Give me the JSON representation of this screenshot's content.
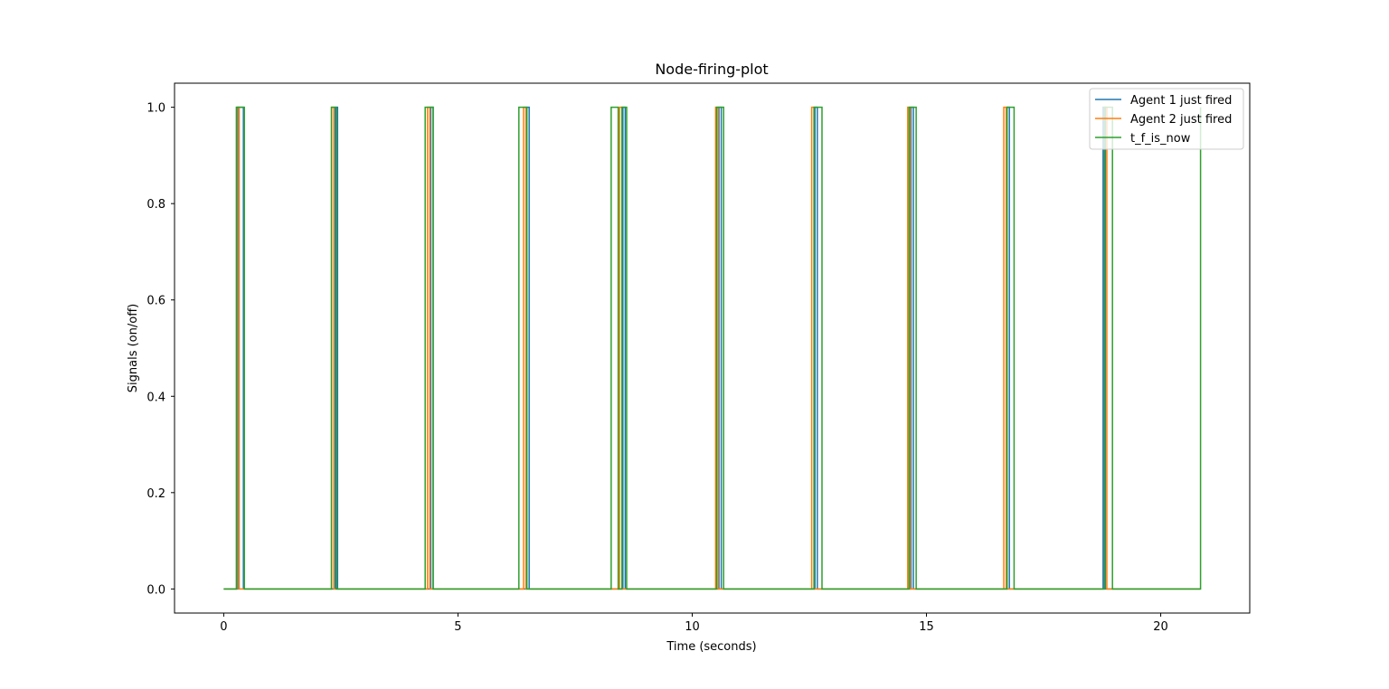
{
  "chart_data": {
    "type": "line",
    "title": "Node-firing-plot",
    "xlabel": "Time (seconds)",
    "ylabel": "Signals (on/off)",
    "xlim": [
      -1.05,
      21.9
    ],
    "ylim": [
      -0.05,
      1.05
    ],
    "xticks": [
      0,
      5,
      10,
      15,
      20
    ],
    "yticks": [
      0.0,
      0.2,
      0.4,
      0.6,
      0.8,
      1.0
    ],
    "xtick_labels": [
      "0",
      "5",
      "10",
      "15",
      "20"
    ],
    "ytick_labels": [
      "0.0",
      "0.2",
      "0.4",
      "0.6",
      "0.8",
      "1.0"
    ],
    "grid": false,
    "legend": "top-right",
    "x_end": 20.85,
    "series": [
      {
        "name": "Agent 1 just fired",
        "color": "#1f77b4",
        "pulses_on": [
          [
            0.3,
            0.42
          ],
          [
            2.38,
            2.43
          ],
          [
            4.42,
            4.47
          ],
          [
            6.47,
            6.52
          ],
          [
            8.52,
            8.57
          ],
          [
            10.57,
            10.62
          ],
          [
            12.62,
            12.67
          ],
          [
            14.67,
            14.72
          ],
          [
            16.72,
            16.77
          ],
          [
            18.77,
            18.82
          ]
        ]
      },
      {
        "name": "Agent 2 just fired",
        "color": "#ff7f0e",
        "pulses_on": [
          [
            0.28,
            0.33
          ],
          [
            2.3,
            2.35
          ],
          [
            4.35,
            4.4
          ],
          [
            6.4,
            6.45
          ],
          [
            8.45,
            8.5
          ],
          [
            10.5,
            10.55
          ],
          [
            12.55,
            12.6
          ],
          [
            14.6,
            14.65
          ],
          [
            16.65,
            16.7
          ],
          [
            18.8,
            18.85
          ]
        ]
      },
      {
        "name": "t_f_is_now",
        "color": "#2ca02c",
        "pulses_on": [
          [
            0.27,
            0.44
          ],
          [
            2.3,
            2.4
          ],
          [
            4.3,
            4.47
          ],
          [
            6.3,
            6.47
          ],
          [
            8.27,
            8.42
          ],
          [
            8.5,
            8.6
          ],
          [
            10.52,
            10.67
          ],
          [
            12.6,
            12.77
          ],
          [
            14.63,
            14.78
          ],
          [
            16.72,
            16.87
          ],
          [
            18.8,
            18.97
          ],
          [
            20.85,
            20.85
          ]
        ]
      }
    ]
  }
}
